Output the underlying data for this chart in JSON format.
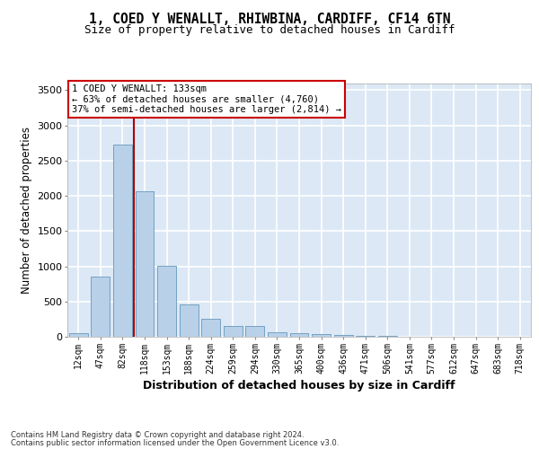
{
  "title_line1": "1, COED Y WENALLT, RHIWBINA, CARDIFF, CF14 6TN",
  "title_line2": "Size of property relative to detached houses in Cardiff",
  "xlabel": "Distribution of detached houses by size in Cardiff",
  "ylabel": "Number of detached properties",
  "categories": [
    "12sqm",
    "47sqm",
    "82sqm",
    "118sqm",
    "153sqm",
    "188sqm",
    "224sqm",
    "259sqm",
    "294sqm",
    "330sqm",
    "365sqm",
    "400sqm",
    "436sqm",
    "471sqm",
    "506sqm",
    "541sqm",
    "577sqm",
    "612sqm",
    "647sqm",
    "683sqm",
    "718sqm"
  ],
  "values": [
    55,
    850,
    2730,
    2070,
    1010,
    460,
    250,
    155,
    155,
    65,
    55,
    40,
    20,
    15,
    10,
    5,
    5,
    3,
    2,
    2,
    2
  ],
  "bar_color": "#b8d0e8",
  "bar_edge_color": "#6699bb",
  "vline_color": "#aa0000",
  "annotation_text": "1 COED Y WENALLT: 133sqm\n← 63% of detached houses are smaller (4,760)\n37% of semi-detached houses are larger (2,814) →",
  "annotation_box_bg": "#ffffff",
  "annotation_box_edge": "#cc0000",
  "ylim": [
    0,
    3600
  ],
  "yticks": [
    0,
    500,
    1000,
    1500,
    2000,
    2500,
    3000,
    3500
  ],
  "bg_color": "#dce8f5",
  "grid_color": "#ffffff",
  "footnote_line1": "Contains HM Land Registry data © Crown copyright and database right 2024.",
  "footnote_line2": "Contains public sector information licensed under the Open Government Licence v3.0."
}
